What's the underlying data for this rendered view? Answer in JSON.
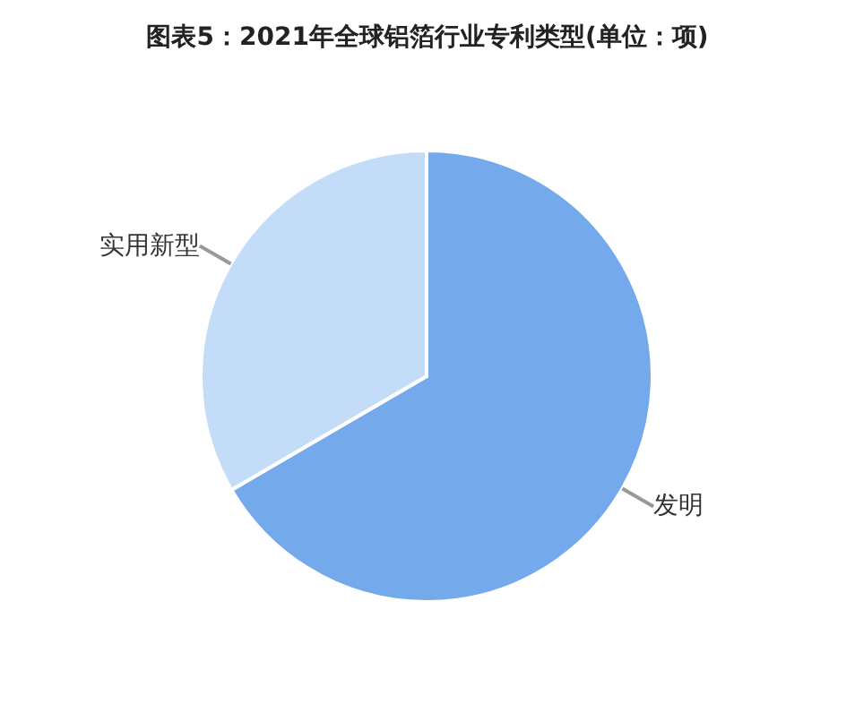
{
  "chart_data": {
    "type": "pie",
    "title": "图表5：2021年全球铝箔行业专利类型(单位：项)",
    "categories": [
      "发明",
      "实用新型"
    ],
    "values": [
      66.6,
      33.4
    ],
    "colors": [
      "#74a9ec",
      "#c3dcf8"
    ],
    "legend": false
  }
}
